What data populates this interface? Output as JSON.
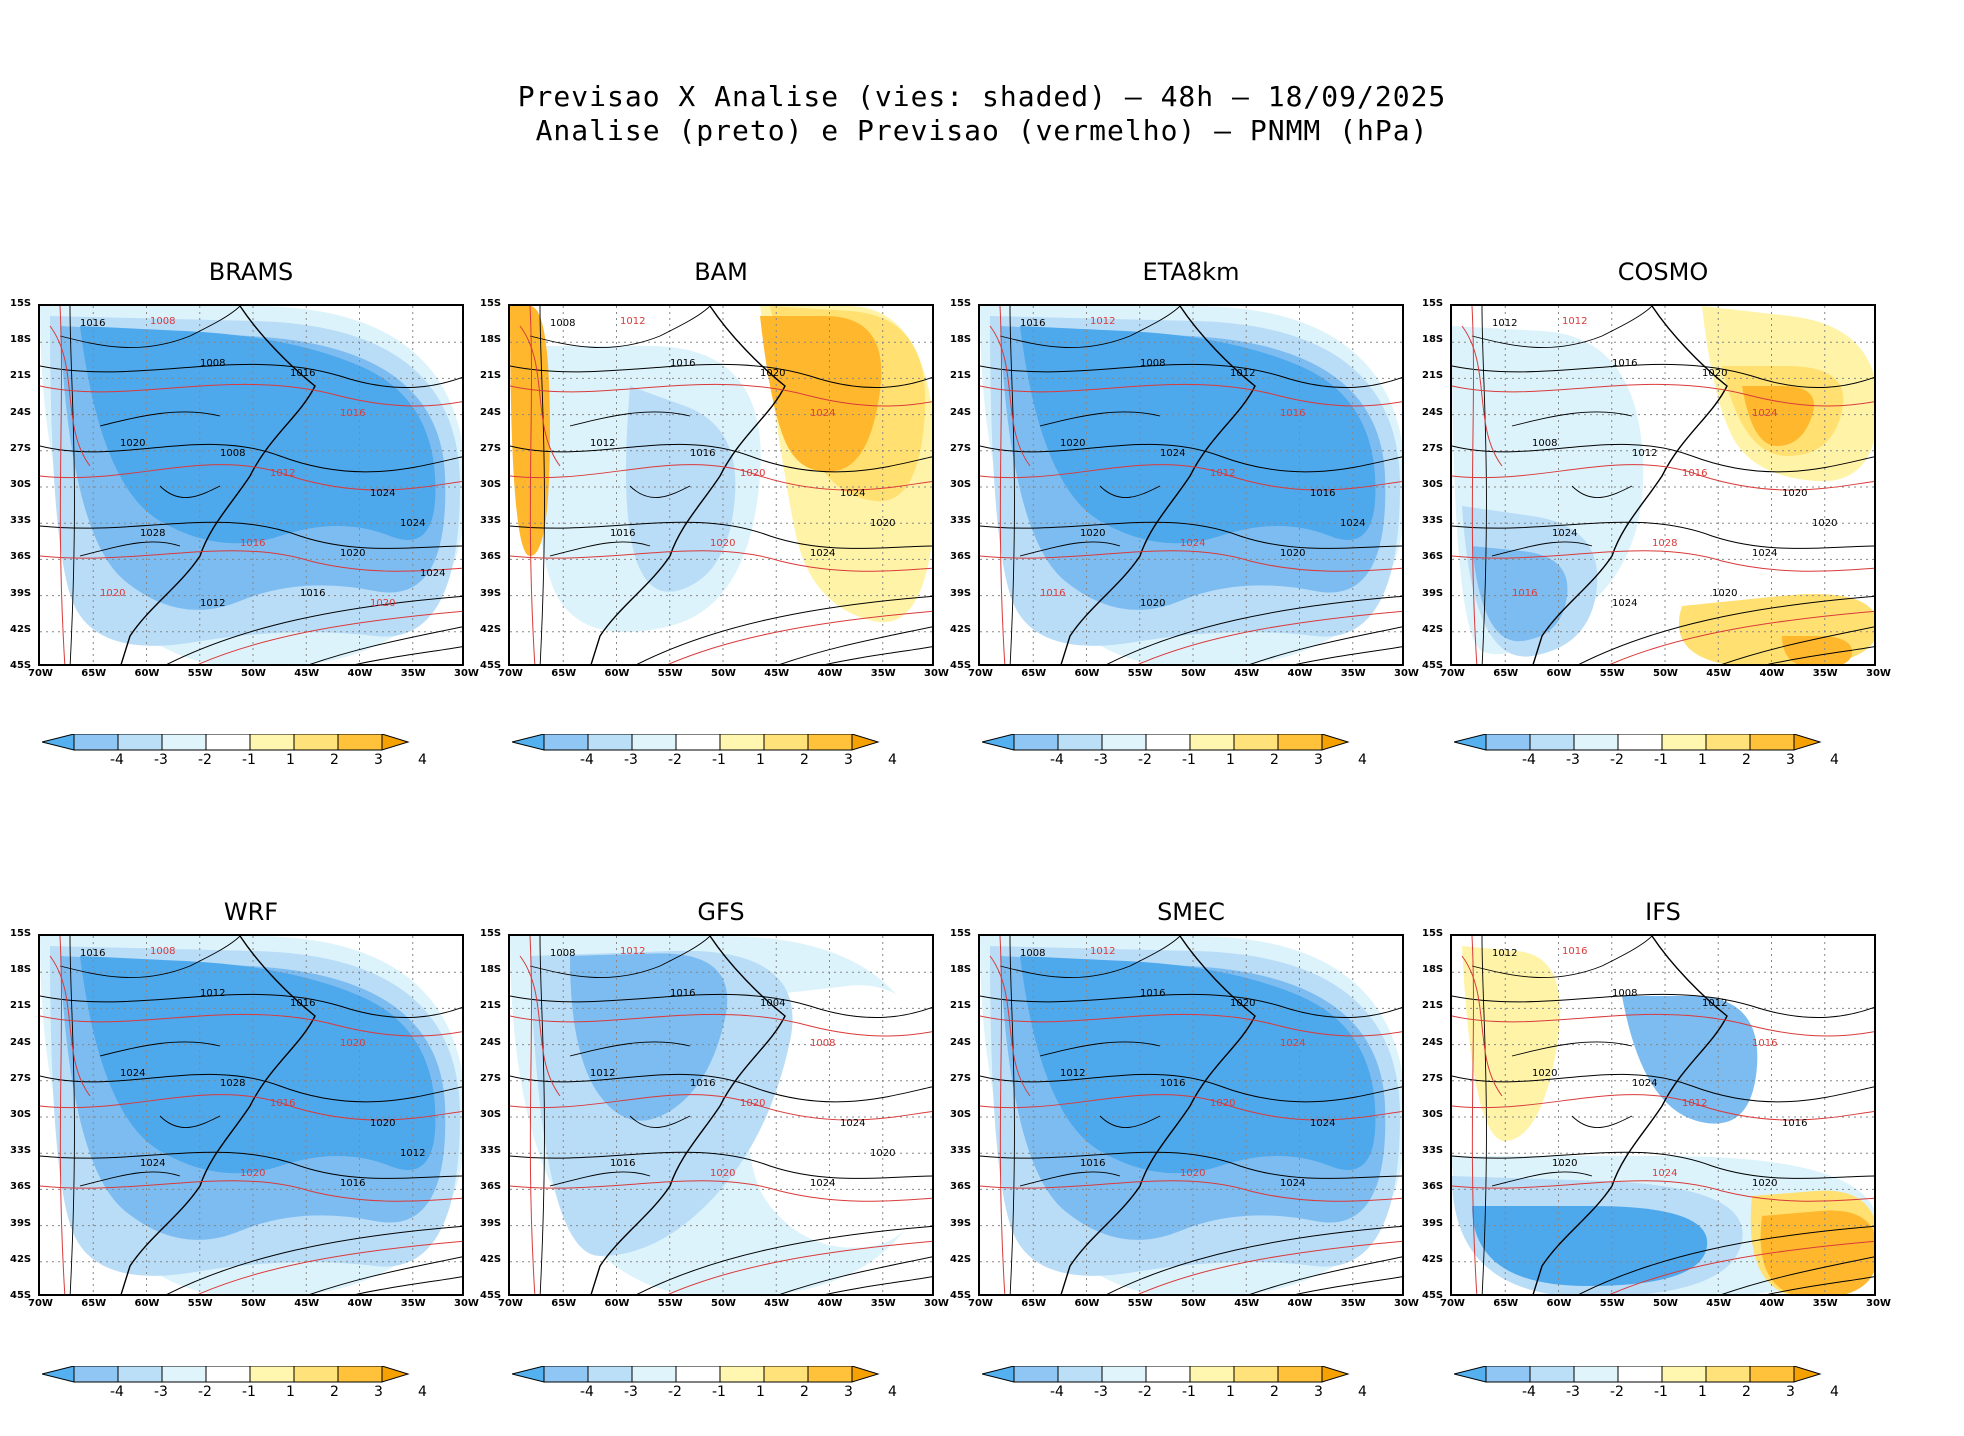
{
  "figure": {
    "title_line1": "Previsao X Analise (vies: shaded) — 48h — 18/09/2025",
    "title_line2": "Analise (preto) e Previsao (vermelho) — PNMM (hPa)"
  },
  "axes": {
    "lat_labels": [
      "15S",
      "18S",
      "21S",
      "24S",
      "27S",
      "30S",
      "33S",
      "36S",
      "39S",
      "42S",
      "45S"
    ],
    "lon_labels": [
      "70W",
      "65W",
      "60W",
      "55W",
      "50W",
      "45W",
      "40W",
      "35W",
      "30W"
    ]
  },
  "colorbar": {
    "labels": [
      "-4",
      "-3",
      "-2",
      "-1",
      "1",
      "2",
      "3",
      "4"
    ],
    "colors": [
      "#55b0f0",
      "#8fc6f3",
      "#bcdff8",
      "#dff5fb",
      "#ffffff",
      "#fff6b0",
      "#ffe27a",
      "#ffc23a",
      "#f5a100"
    ]
  },
  "colors": {
    "analysis": "#000000",
    "forecast": "#d93a3a",
    "blue_strong": "#4ea8ec",
    "blue_med": "#7dbcf0",
    "blue_light": "#b9dcf7",
    "cyan_light": "#dcf3fb",
    "yellow_light": "#fff3a8",
    "yellow": "#ffe070",
    "orange": "#ffb82e",
    "orange_strong": "#f39a00"
  },
  "panels": [
    {
      "name": "BRAMS",
      "bias": "negative",
      "contour_labels": [
        "1016",
        "1008",
        "1008",
        "1016",
        "1016",
        "1020",
        "1008",
        "1012",
        "1024",
        "1028",
        "1016",
        "1020",
        "1024",
        "1020",
        "1012",
        "1016",
        "1020",
        "1024"
      ]
    },
    {
      "name": "BAM",
      "bias": "positive_east",
      "contour_labels": [
        "1008",
        "1012",
        "1016",
        "1020",
        "1024",
        "1012",
        "1016",
        "1020",
        "1024",
        "1016",
        "1020",
        "1024",
        "1020"
      ]
    },
    {
      "name": "ETA8km",
      "bias": "negative",
      "contour_labels": [
        "1016",
        "1012",
        "1008",
        "1012",
        "1016",
        "1020",
        "1024",
        "1012",
        "1016",
        "1020",
        "1024",
        "1020",
        "1024",
        "1016",
        "1020"
      ]
    },
    {
      "name": "COSMO",
      "bias": "mixed",
      "contour_labels": [
        "1012",
        "1012",
        "1016",
        "1020",
        "1024",
        "1008",
        "1012",
        "1016",
        "1020",
        "1024",
        "1028",
        "1024",
        "1020",
        "1016",
        "1024",
        "1020"
      ]
    },
    {
      "name": "WRF",
      "bias": "negative",
      "contour_labels": [
        "1016",
        "1008",
        "1012",
        "1016",
        "1020",
        "1024",
        "1028",
        "1016",
        "1020",
        "1024",
        "1020",
        "1016",
        "1012"
      ]
    },
    {
      "name": "GFS",
      "bias": "negative_light",
      "contour_labels": [
        "1008",
        "1012",
        "1016",
        "1004",
        "1008",
        "1012",
        "1016",
        "1020",
        "1024",
        "1016",
        "1020",
        "1024",
        "1020"
      ]
    },
    {
      "name": "SMEC",
      "bias": "negative",
      "contour_labels": [
        "1008",
        "1012",
        "1016",
        "1020",
        "1024",
        "1012",
        "1016",
        "1020",
        "1024",
        "1016",
        "1020",
        "1024"
      ]
    },
    {
      "name": "IFS",
      "bias": "southeast_positive",
      "contour_labels": [
        "1012",
        "1016",
        "1008",
        "1012",
        "1016",
        "1020",
        "1024",
        "1012",
        "1016",
        "1020",
        "1024",
        "1020"
      ]
    }
  ]
}
